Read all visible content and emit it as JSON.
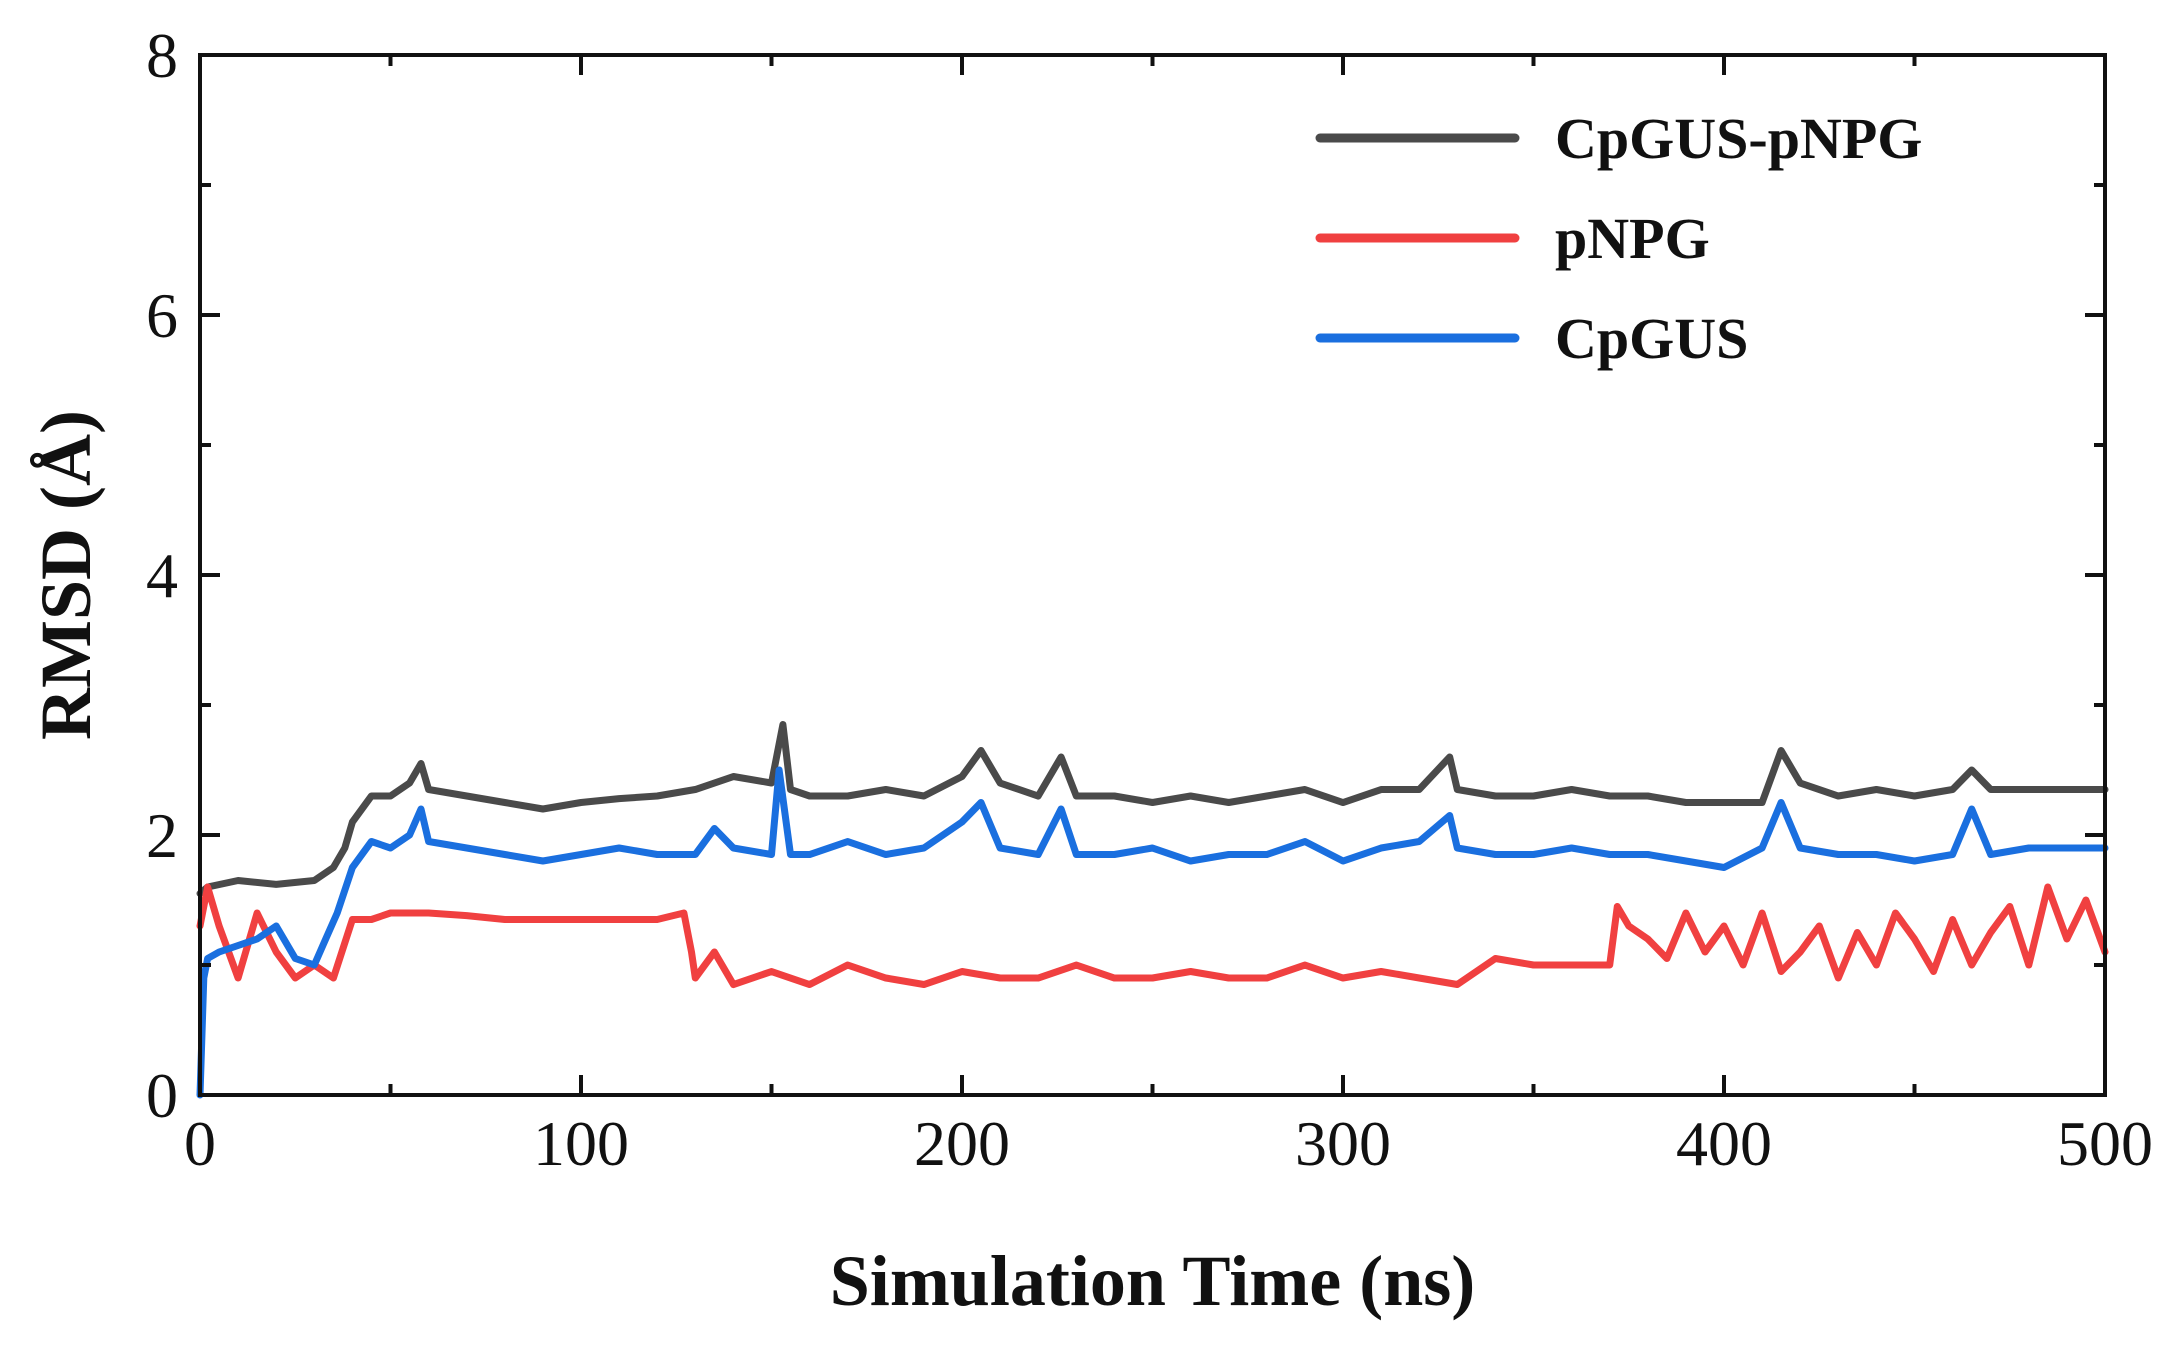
{
  "chart_data": {
    "type": "line",
    "title": "",
    "xlabel": "Simulation Time (ns)",
    "ylabel": "RMSD (Å)",
    "xlim": [
      0,
      500
    ],
    "ylim": [
      0,
      8
    ],
    "xticks": [
      0,
      100,
      200,
      300,
      400,
      500
    ],
    "yticks": [
      0,
      2,
      4,
      6,
      8
    ],
    "grid": false,
    "legend_position": "top-right",
    "series": [
      {
        "name": "CpGUS-pNPG",
        "color": "#4a4a4a",
        "x": [
          0,
          2,
          10,
          20,
          30,
          35,
          38,
          40,
          45,
          50,
          55,
          58,
          60,
          70,
          80,
          90,
          100,
          110,
          120,
          130,
          140,
          150,
          153,
          155,
          160,
          170,
          180,
          190,
          200,
          205,
          210,
          220,
          226,
          230,
          240,
          250,
          260,
          270,
          280,
          290,
          300,
          310,
          320,
          328,
          330,
          340,
          350,
          360,
          370,
          380,
          390,
          400,
          410,
          415,
          420,
          430,
          440,
          450,
          460,
          465,
          470,
          480,
          490,
          500
        ],
        "y": [
          1.55,
          1.6,
          1.65,
          1.62,
          1.65,
          1.75,
          1.9,
          2.1,
          2.3,
          2.3,
          2.4,
          2.55,
          2.35,
          2.3,
          2.25,
          2.2,
          2.25,
          2.28,
          2.3,
          2.35,
          2.45,
          2.4,
          2.85,
          2.35,
          2.3,
          2.3,
          2.35,
          2.3,
          2.45,
          2.65,
          2.4,
          2.3,
          2.6,
          2.3,
          2.3,
          2.25,
          2.3,
          2.25,
          2.3,
          2.35,
          2.25,
          2.35,
          2.35,
          2.6,
          2.35,
          2.3,
          2.3,
          2.35,
          2.3,
          2.3,
          2.25,
          2.25,
          2.25,
          2.65,
          2.4,
          2.3,
          2.35,
          2.3,
          2.35,
          2.5,
          2.35,
          2.35,
          2.35,
          2.35
        ]
      },
      {
        "name": "pNPG",
        "color": "#f04040",
        "x": [
          0,
          2,
          5,
          10,
          15,
          20,
          25,
          30,
          35,
          40,
          45,
          50,
          60,
          70,
          80,
          90,
          100,
          110,
          120,
          127,
          129,
          130,
          135,
          140,
          150,
          160,
          170,
          180,
          190,
          200,
          210,
          220,
          230,
          240,
          250,
          260,
          270,
          280,
          290,
          300,
          310,
          320,
          330,
          340,
          350,
          360,
          365,
          370,
          372,
          375,
          380,
          385,
          390,
          395,
          400,
          405,
          410,
          415,
          420,
          425,
          430,
          435,
          440,
          445,
          450,
          455,
          460,
          465,
          470,
          475,
          480,
          485,
          490,
          495,
          500
        ],
        "y": [
          1.3,
          1.6,
          1.3,
          0.9,
          1.4,
          1.1,
          0.9,
          1.0,
          0.9,
          1.35,
          1.35,
          1.4,
          1.4,
          1.38,
          1.35,
          1.35,
          1.35,
          1.35,
          1.35,
          1.4,
          1.1,
          0.9,
          1.1,
          0.85,
          0.95,
          0.85,
          1.0,
          0.9,
          0.85,
          0.95,
          0.9,
          0.9,
          1.0,
          0.9,
          0.9,
          0.95,
          0.9,
          0.9,
          1.0,
          0.9,
          0.95,
          0.9,
          0.85,
          1.05,
          1.0,
          1.0,
          1.0,
          1.0,
          1.45,
          1.3,
          1.2,
          1.05,
          1.4,
          1.1,
          1.3,
          1.0,
          1.4,
          0.95,
          1.1,
          1.3,
          0.9,
          1.25,
          1.0,
          1.4,
          1.2,
          0.95,
          1.35,
          1.0,
          1.25,
          1.45,
          1.0,
          1.6,
          1.2,
          1.5,
          1.1
        ]
      },
      {
        "name": "CpGUS",
        "color": "#1a6fdf",
        "x": [
          0,
          1,
          2,
          5,
          10,
          15,
          20,
          25,
          30,
          33,
          36,
          40,
          45,
          50,
          55,
          58,
          60,
          70,
          80,
          90,
          100,
          110,
          120,
          130,
          135,
          140,
          150,
          152,
          155,
          160,
          170,
          180,
          190,
          200,
          205,
          210,
          220,
          226,
          230,
          240,
          250,
          260,
          270,
          280,
          290,
          300,
          310,
          320,
          328,
          330,
          340,
          350,
          360,
          370,
          380,
          390,
          400,
          410,
          415,
          420,
          430,
          440,
          450,
          460,
          465,
          470,
          480,
          490,
          500
        ],
        "y": [
          0.0,
          0.9,
          1.05,
          1.1,
          1.15,
          1.2,
          1.3,
          1.05,
          1.0,
          1.2,
          1.4,
          1.75,
          1.95,
          1.9,
          2.0,
          2.2,
          1.95,
          1.9,
          1.85,
          1.8,
          1.85,
          1.9,
          1.85,
          1.85,
          2.05,
          1.9,
          1.85,
          2.5,
          1.85,
          1.85,
          1.95,
          1.85,
          1.9,
          2.1,
          2.25,
          1.9,
          1.85,
          2.2,
          1.85,
          1.85,
          1.9,
          1.8,
          1.85,
          1.85,
          1.95,
          1.8,
          1.9,
          1.95,
          2.15,
          1.9,
          1.85,
          1.85,
          1.9,
          1.85,
          1.85,
          1.8,
          1.75,
          1.9,
          2.25,
          1.9,
          1.85,
          1.85,
          1.8,
          1.85,
          2.2,
          1.85,
          1.9,
          1.9,
          1.9
        ]
      }
    ]
  }
}
